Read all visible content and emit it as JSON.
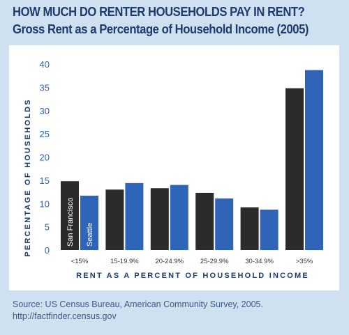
{
  "title": "HOW MUCH DO RENTER HOUSEHOLDS PAY IN RENT?",
  "subtitle": "Gross Rent as a Percentage of Household Income (2005)",
  "source": "Source: US Census Bureau, American Community Survey, 2005. http://factfinder.census.gov",
  "chart_data": {
    "type": "bar",
    "categories": [
      "<15%",
      "15-19.9%",
      "20-24.9%",
      "25-29.9%",
      "30-34.9%",
      ">35%"
    ],
    "series": [
      {
        "name": "San Francisco",
        "values": [
          14.8,
          13.0,
          13.3,
          12.3,
          9.2,
          34.8
        ],
        "color": "#2b2b2d"
      },
      {
        "name": "Seattle",
        "values": [
          11.7,
          14.4,
          14.0,
          11.1,
          8.7,
          38.7
        ],
        "color": "#2f64b9"
      }
    ],
    "xlabel": "RENT AS A PERCENT OF HOUSEHOLD INCOME",
    "ylabel": "PERCENTAGE OF HOUSEHOLDS",
    "yticks": [
      0,
      5,
      10,
      15,
      20,
      25,
      30,
      35,
      40
    ],
    "ylim": [
      0,
      40
    ],
    "grid": false,
    "legend": "labels inside first pair of bars",
    "axis_label_color": "#1f3a6d",
    "tick_label_color": "#2f64b9"
  }
}
